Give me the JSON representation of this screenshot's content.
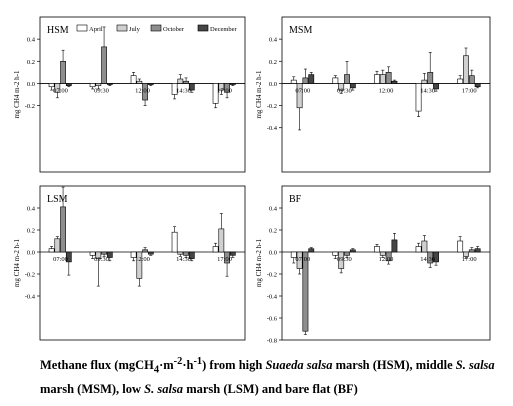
{
  "chart_data": [
    {
      "type": "bar",
      "title": "HSM",
      "ylabel": "mg CH4 m-2 h-1",
      "categories": [
        "07:00",
        "09:30",
        "12:00",
        "14:30",
        "17:00"
      ],
      "ylim": [
        -0.8,
        0.6
      ],
      "yticks": [
        0.4,
        0.2,
        0.0,
        -0.2
      ],
      "series": [
        {
          "name": "April",
          "color": "#ffffff",
          "values": [
            -0.03,
            -0.03,
            0.07,
            -0.1,
            -0.18
          ],
          "errors": [
            0.03,
            0.02,
            0.03,
            0.04,
            0.04
          ]
        },
        {
          "name": "July",
          "color": "#d0d0d0",
          "values": [
            -0.08,
            -0.02,
            0.02,
            0.04,
            -0.06
          ],
          "errors": [
            0.05,
            0.03,
            0.02,
            0.04,
            0.04
          ]
        },
        {
          "name": "October",
          "color": "#8e8e8e",
          "values": [
            0.2,
            0.33,
            -0.15,
            0.02,
            -0.08
          ],
          "errors": [
            0.1,
            0.18,
            0.05,
            0.03,
            0.05
          ]
        },
        {
          "name": "December",
          "color": "#454545",
          "values": [
            -0.02,
            -0.01,
            -0.01,
            -0.06,
            -0.01
          ],
          "errors": [
            0.01,
            0.01,
            0.01,
            0.02,
            0.01
          ]
        }
      ]
    },
    {
      "type": "bar",
      "title": "MSM",
      "ylabel": "mg CH4 m-2 h-1",
      "categories": [
        "07:00",
        "09:30",
        "12:00",
        "14:30",
        "17:00"
      ],
      "ylim": [
        -0.8,
        0.6
      ],
      "yticks": [
        0.4,
        0.2,
        0.0,
        -0.2,
        -0.4
      ],
      "series": [
        {
          "name": "April",
          "color": "#ffffff",
          "values": [
            0.03,
            0.05,
            0.08,
            -0.25,
            0.04
          ],
          "errors": [
            0.03,
            0.02,
            0.03,
            0.05,
            0.03
          ]
        },
        {
          "name": "July",
          "color": "#d0d0d0",
          "values": [
            -0.22,
            -0.06,
            0.08,
            0.03,
            0.25
          ],
          "errors": [
            0.2,
            0.03,
            0.04,
            0.06,
            0.07
          ]
        },
        {
          "name": "October",
          "color": "#8e8e8e",
          "values": [
            0.05,
            0.08,
            0.1,
            0.1,
            0.07
          ],
          "errors": [
            0.08,
            0.12,
            0.05,
            0.18,
            0.05
          ]
        },
        {
          "name": "December",
          "color": "#454545",
          "values": [
            0.08,
            -0.04,
            0.02,
            -0.05,
            -0.03
          ],
          "errors": [
            0.02,
            0.02,
            0.01,
            0.02,
            0.01
          ]
        }
      ]
    },
    {
      "type": "bar",
      "title": "LSM",
      "ylabel": "mg CH4 m-2 h-1",
      "categories": [
        "07:00",
        "09:30",
        "12:00",
        "14:30",
        "17:00"
      ],
      "ylim": [
        -0.8,
        0.6
      ],
      "yticks": [
        0.4,
        0.2,
        0.0,
        -0.2,
        -0.4
      ],
      "series": [
        {
          "name": "April",
          "color": "#ffffff",
          "values": [
            0.03,
            -0.03,
            -0.05,
            0.18,
            0.05
          ],
          "errors": [
            0.02,
            0.03,
            0.03,
            0.05,
            0.03
          ]
        },
        {
          "name": "July",
          "color": "#d0d0d0",
          "values": [
            0.12,
            -0.06,
            -0.24,
            -0.02,
            0.21
          ],
          "errors": [
            0.02,
            0.25,
            0.07,
            0.02,
            0.14
          ]
        },
        {
          "name": "October",
          "color": "#8e8e8e",
          "values": [
            0.41,
            -0.02,
            0.02,
            -0.03,
            -0.1
          ],
          "errors": [
            0.18,
            0.02,
            0.02,
            0.02,
            0.12
          ]
        },
        {
          "name": "December",
          "color": "#454545",
          "values": [
            -0.09,
            -0.05,
            -0.02,
            -0.06,
            -0.03
          ],
          "errors": [
            0.12,
            0.03,
            0.01,
            0.02,
            0.02
          ]
        }
      ]
    },
    {
      "type": "bar",
      "title": "BF",
      "ylabel": "mg CH4 m-2 h-1",
      "categories": [
        "07:00",
        "09:30",
        "12:00",
        "14:30",
        "17:00"
      ],
      "ylim": [
        -0.8,
        0.6
      ],
      "yticks": [
        0.4,
        0.2,
        0.0,
        -0.2,
        -0.4,
        -0.6,
        -0.8
      ],
      "series": [
        {
          "name": "April",
          "color": "#ffffff",
          "values": [
            -0.05,
            -0.03,
            0.05,
            0.05,
            0.1
          ],
          "errors": [
            0.05,
            0.03,
            0.02,
            0.03,
            0.04
          ]
        },
        {
          "name": "July",
          "color": "#d0d0d0",
          "values": [
            -0.15,
            -0.15,
            -0.03,
            0.1,
            -0.04
          ],
          "errors": [
            0.05,
            0.04,
            0.02,
            0.05,
            0.02
          ]
        },
        {
          "name": "October",
          "color": "#8e8e8e",
          "values": [
            -0.72,
            -0.03,
            -0.08,
            -0.1,
            0.02
          ],
          "errors": [
            0.03,
            0.02,
            0.03,
            0.04,
            0.02
          ]
        },
        {
          "name": "December",
          "color": "#454545",
          "values": [
            0.03,
            0.02,
            0.11,
            -0.09,
            0.03
          ],
          "errors": [
            0.01,
            0.01,
            0.06,
            0.03,
            0.02
          ]
        }
      ]
    }
  ],
  "caption": {
    "t1": "Methane flux (mgCH",
    "t2": "4",
    "t3": "·m",
    "t4": "-2",
    "t5": "·h",
    "t6": "-1",
    "t7": ") from high ",
    "t8": "Suaeda salsa",
    "t9": " marsh (HSM), middle ",
    "t10": "S. salsa",
    "t11": " marsh (MSM), low ",
    "t12": "S. salsa",
    "t13": " marsh (LSM) and bare flat (BF)"
  }
}
